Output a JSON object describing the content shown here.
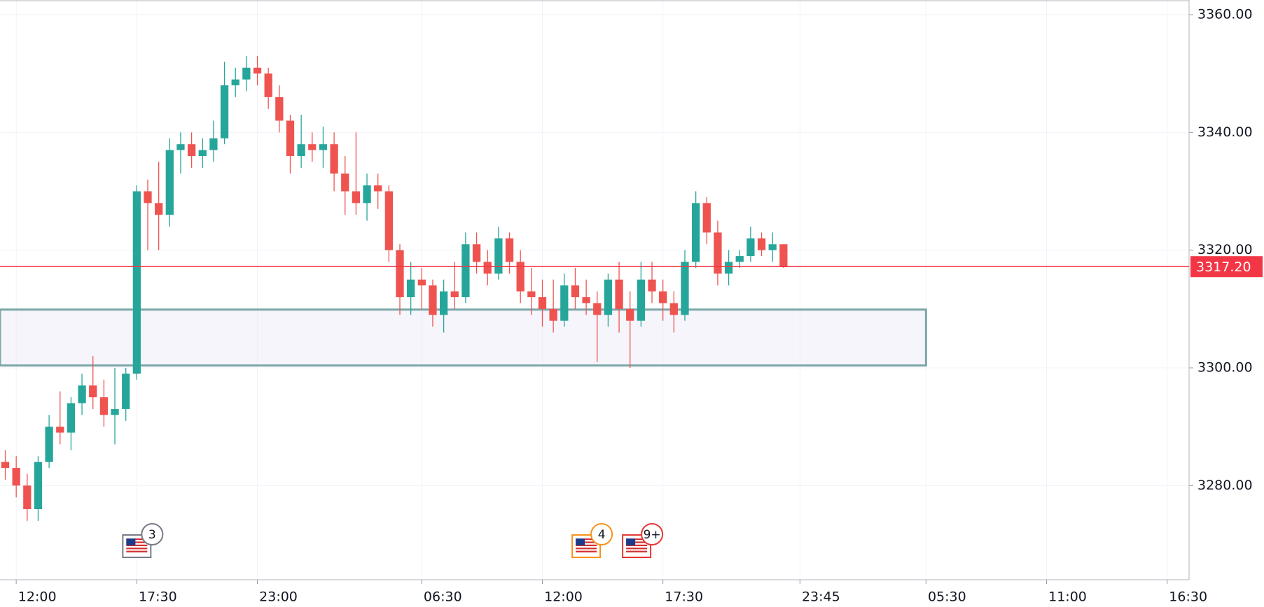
{
  "chart_data": {
    "type": "candlestick",
    "up_color": "#26a69a",
    "down_color": "#ef5350",
    "grid": true,
    "xlim": [
      -0.74,
      53.5
    ],
    "ylim": [
      3264,
      3362.5
    ],
    "xticks": [
      {
        "value": 0,
        "label": "12:00"
      },
      {
        "value": 5.5,
        "label": "17:30"
      },
      {
        "value": 11,
        "label": "23:00"
      },
      {
        "value": 18.5,
        "label": "06:30"
      },
      {
        "value": 24,
        "label": "12:00"
      },
      {
        "value": 29.5,
        "label": "17:30"
      },
      {
        "value": 35.75,
        "label": "23:45"
      },
      {
        "value": 41.5,
        "label": "05:30"
      },
      {
        "value": 47,
        "label": "11:00"
      },
      {
        "value": 52.5,
        "label": "16:30"
      }
    ],
    "yticks": [
      {
        "value": 3280,
        "label": "3280.00"
      },
      {
        "value": 3300,
        "label": "3300.00"
      },
      {
        "value": 3320,
        "label": "3320.00"
      },
      {
        "value": 3340,
        "label": "3340.00"
      },
      {
        "value": 3360,
        "label": "3360.00"
      }
    ],
    "x": [
      -0.5,
      0,
      0.5,
      1,
      1.5,
      2,
      2.5,
      3,
      3.5,
      4,
      4.5,
      5,
      5.5,
      6,
      6.5,
      7,
      7.5,
      8,
      8.5,
      9,
      9.5,
      10,
      10.5,
      11,
      11.5,
      12,
      12.5,
      13,
      13.5,
      14,
      14.5,
      15,
      15.5,
      16,
      16.5,
      17,
      17.5,
      18,
      18.5,
      19,
      19.5,
      20,
      20.5,
      21,
      21.5,
      22,
      22.5,
      23,
      23.5,
      24,
      24.5,
      25,
      25.5,
      26,
      26.5,
      27,
      27.5,
      28,
      28.5,
      29,
      29.5,
      30,
      30.5,
      31,
      31.5,
      32,
      32.5,
      33,
      33.5,
      34,
      34.5,
      35
    ],
    "open": [
      3284,
      3283,
      3280,
      3276,
      3284,
      3290,
      3289,
      3294,
      3297,
      3295,
      3292,
      3293,
      3299,
      3330,
      3328,
      3326,
      3337,
      3338,
      3336,
      3337,
      3339,
      3348,
      3349,
      3351,
      3350,
      3346,
      3342,
      3336,
      3338,
      3337,
      3338,
      3333,
      3330,
      3328,
      3331,
      3330,
      3320,
      3312,
      3315,
      3314,
      3309,
      3313,
      3312,
      3321,
      3318,
      3316,
      3322,
      3318,
      3313,
      3312,
      3310,
      3308,
      3314,
      3312,
      3311,
      3309,
      3315,
      3310,
      3308,
      3315,
      3313,
      3311,
      3309,
      3318,
      3328,
      3323,
      3316,
      3318,
      3319,
      3322,
      3320,
      3321
    ],
    "high": [
      3286,
      3285,
      3282,
      3285,
      3292,
      3296,
      3295,
      3299,
      3302,
      3298,
      3300,
      3300,
      3331,
      3332,
      3335,
      3339,
      3340,
      3340,
      3339,
      3342,
      3352,
      3351,
      3353,
      3353,
      3351,
      3348,
      3343,
      3343,
      3340,
      3341,
      3340,
      3336,
      3340,
      3333,
      3333,
      3331,
      3321,
      3318,
      3317,
      3315,
      3315,
      3318,
      3323,
      3323,
      3320,
      3324,
      3323,
      3320,
      3317,
      3315,
      3315,
      3316,
      3317,
      3315,
      3313,
      3316,
      3318,
      3313,
      3318,
      3318,
      3315,
      3313,
      3320,
      3330,
      3329,
      3325,
      3320,
      3320,
      3324,
      3323,
      3323,
      3321
    ],
    "low": [
      3281,
      3278,
      3274,
      3274,
      3283,
      3287,
      3286,
      3292,
      3293,
      3290,
      3287,
      3291,
      3298,
      3320,
      3320,
      3324,
      3333,
      3334,
      3334,
      3335,
      3338,
      3346,
      3347,
      3348,
      3344,
      3340,
      3333,
      3334,
      3335,
      3334,
      3330,
      3326,
      3326,
      3325,
      3327,
      3318,
      3309,
      3309,
      3310,
      3307,
      3306,
      3310,
      3311,
      3316,
      3314,
      3315,
      3316,
      3311,
      3309,
      3307,
      3306,
      3307,
      3310,
      3309,
      3301,
      3307,
      3306,
      3300,
      3307,
      3311,
      3308,
      3306,
      3308,
      3317,
      3321,
      3314,
      3314,
      3317,
      3318,
      3319,
      3318,
      3317
    ],
    "close": [
      3283,
      3280,
      3276,
      3284,
      3290,
      3289,
      3294,
      3297,
      3295,
      3292,
      3293,
      3299,
      3330,
      3328,
      3326,
      3337,
      3338,
      3336,
      3337,
      3339,
      3348,
      3349,
      3351,
      3350,
      3346,
      3342,
      3336,
      3338,
      3337,
      3338,
      3333,
      3330,
      3328,
      3331,
      3330,
      3320,
      3312,
      3315,
      3314,
      3309,
      3313,
      3312,
      3321,
      3318,
      3316,
      3322,
      3318,
      3313,
      3312,
      3310,
      3308,
      3314,
      3312,
      3311,
      3309,
      3315,
      3310,
      3308,
      3315,
      3313,
      3311,
      3309,
      3318,
      3328,
      3323,
      3316,
      3318,
      3319,
      3322,
      3320,
      3321,
      3317.2
    ],
    "last_price": {
      "value": 3317.2,
      "value_label": "3317.20",
      "color": "#f23645"
    },
    "zone": {
      "low": 3300.4,
      "high": 3309.9,
      "x_end": 41.5,
      "color": "#7ba6a8"
    },
    "events": [
      {
        "x": 5.5,
        "label": "3",
        "color": "#787b86"
      },
      {
        "x": 26,
        "label": "4",
        "color": "#f7931a"
      },
      {
        "x": 28.3,
        "label": "9+",
        "color": "#e53935"
      }
    ]
  }
}
